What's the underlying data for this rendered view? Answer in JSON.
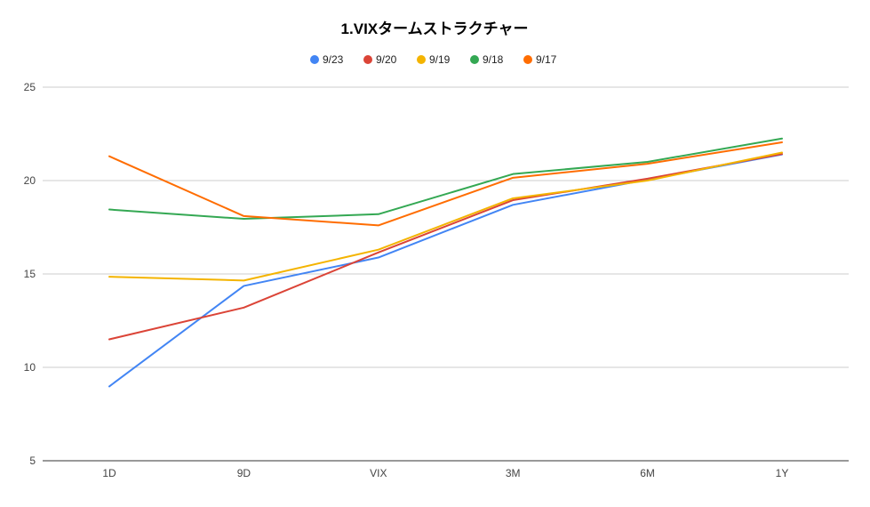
{
  "chart_data": {
    "type": "line",
    "title": "1.VIXタームストラクチャー",
    "xlabel": "",
    "ylabel": "",
    "categories": [
      "1D",
      "9D",
      "VIX",
      "3M",
      "6M",
      "1Y"
    ],
    "y_ticks": [
      "5",
      "10",
      "15",
      "20",
      "25"
    ],
    "ylim": [
      5,
      25
    ],
    "grid": true,
    "legend_position": "top",
    "series": [
      {
        "name": "9/23",
        "color": "#4285f4",
        "values": [
          8.98,
          14.36,
          15.88,
          18.7,
          20.05,
          21.4
        ]
      },
      {
        "name": "9/20",
        "color": "#db4437",
        "values": [
          11.5,
          13.2,
          16.15,
          18.95,
          20.1,
          21.42
        ]
      },
      {
        "name": "9/19",
        "color": "#f4b400",
        "values": [
          14.85,
          14.65,
          16.3,
          19.05,
          20.0,
          21.5
        ]
      },
      {
        "name": "9/18",
        "color": "#34a853",
        "values": [
          18.45,
          17.95,
          18.2,
          20.35,
          21.0,
          22.25
        ]
      },
      {
        "name": "9/17",
        "color": "#ff6d01",
        "values": [
          21.3,
          18.1,
          17.6,
          20.15,
          20.9,
          22.05
        ]
      }
    ]
  }
}
